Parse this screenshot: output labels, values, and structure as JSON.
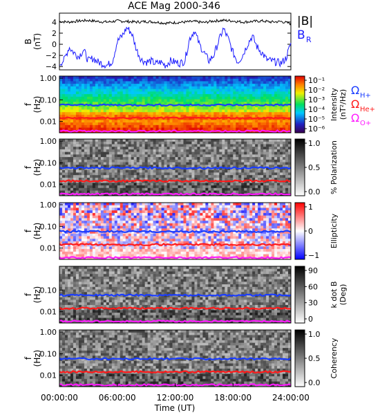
{
  "title": "ACE Mag 2000-346",
  "colors": {
    "btotal": "#000000",
    "br": "#1a1aff",
    "h_plus": "#1a3cff",
    "he_plus": "#ff1a1a",
    "o_plus": "#ff1aff"
  },
  "legends": {
    "btotal_label": "|B|",
    "br_label": "B",
    "br_sub": "R",
    "omega_symbol": "Ω",
    "h_sub": "H+",
    "he_sub": "He+",
    "o_sub": "O+"
  },
  "chart_data": [
    {
      "type": "line",
      "panel": "magnetic field",
      "ylabel": "B",
      "ylabel_unit": "(nT)",
      "ylim": [
        -4.6,
        5.6
      ],
      "yticks": [
        -4,
        -2,
        0,
        2,
        4
      ],
      "tick_labels": [
        "−4",
        "−2",
        "0",
        "2",
        "4"
      ],
      "series": [
        {
          "name": "|B|",
          "x_hours": [
            0,
            1,
            2,
            3,
            4,
            5,
            6,
            7,
            8,
            9,
            10,
            11,
            12,
            13,
            14,
            15,
            16,
            17,
            18,
            19,
            20,
            21,
            22,
            23,
            24
          ],
          "values": [
            4.1,
            4.0,
            4.2,
            4.3,
            4.1,
            4.0,
            4.2,
            4.1,
            4.0,
            4.1,
            4.0,
            3.8,
            3.9,
            4.0,
            4.1,
            3.9,
            4.2,
            4.3,
            4.2,
            4.0,
            4.1,
            4.2,
            4.0,
            4.1,
            3.7
          ]
        },
        {
          "name": "BR",
          "x_hours": [
            0,
            0.5,
            1,
            1.5,
            2,
            2.5,
            3,
            3.5,
            4,
            4.5,
            5,
            5.5,
            6,
            6.5,
            7,
            7.5,
            8,
            8.5,
            9,
            9.5,
            10,
            10.5,
            11,
            11.5,
            12,
            12.5,
            13,
            13.5,
            14,
            14.5,
            15,
            15.5,
            16,
            16.5,
            17,
            17.5,
            18,
            18.5,
            19,
            19.5,
            20,
            20.5,
            21,
            21.5,
            22,
            22.5,
            23,
            23.5,
            24
          ],
          "values": [
            -3.5,
            -2.8,
            -0.5,
            -1.5,
            -2.2,
            -1.0,
            -3.0,
            -2.5,
            -3.2,
            -3.5,
            -3.8,
            -3.0,
            0.5,
            1.5,
            3.0,
            2.0,
            -1.0,
            -2.8,
            -3.2,
            -3.0,
            -3.5,
            -3.2,
            -3.8,
            -3.0,
            -3.2,
            -3.4,
            -3.0,
            1.0,
            2.5,
            0.0,
            -1.5,
            -3.0,
            -2.0,
            0.5,
            2.8,
            1.0,
            -1.5,
            -3.2,
            -2.0,
            0.0,
            1.5,
            -0.5,
            -1.5,
            -2.8,
            -3.0,
            -3.2,
            -3.4,
            -2.5,
            0.2
          ]
        }
      ]
    },
    {
      "type": "heatmap",
      "panel": "power spectral density",
      "ylabel": "f",
      "ylabel_unit": "(Hz)",
      "yticks": [
        1.0,
        0.1,
        0.01
      ],
      "tick_labels": [
        "1.00",
        "0.10",
        "0.01"
      ],
      "colorbar_label": "Intensity",
      "colorbar_unit": "(nT²/Hz)",
      "colorbar_ticks": [
        "10⁻¹",
        "10⁻²",
        "10⁻³",
        "10⁻⁴",
        "10⁻⁵",
        "10⁻⁶"
      ],
      "colormap": "rainbow"
    },
    {
      "type": "heatmap",
      "panel": "percent polarization",
      "ylabel": "f",
      "ylabel_unit": "(Hz)",
      "yticks": [
        1.0,
        0.1,
        0.01
      ],
      "tick_labels": [
        "1.00",
        "0.10",
        "0.01"
      ],
      "colorbar_label": "% Polarization",
      "colorbar_ticks": [
        "1.0",
        "0.5",
        "0.0"
      ],
      "colormap": "grayscale"
    },
    {
      "type": "heatmap",
      "panel": "ellipticity",
      "ylabel": "f",
      "ylabel_unit": "(Hz)",
      "yticks": [
        1.0,
        0.1,
        0.01
      ],
      "tick_labels": [
        "1.00",
        "0.10",
        "0.01"
      ],
      "colorbar_label": "Ellipticity",
      "colorbar_ticks": [
        "1",
        "0",
        "−1"
      ],
      "colormap": "blue-white-red"
    },
    {
      "type": "heatmap",
      "panel": "wave normal angle",
      "ylabel": "f",
      "ylabel_unit": "(Hz)",
      "yticks": [
        0.1,
        0.01
      ],
      "tick_labels": [
        "0.10",
        "0.01"
      ],
      "colorbar_label": "k dot B",
      "colorbar_unit": "(Deg)",
      "colorbar_ticks": [
        "90",
        "60",
        "30",
        "0"
      ],
      "colormap": "grayscale"
    },
    {
      "type": "heatmap",
      "panel": "coherency",
      "ylabel": "f",
      "ylabel_unit": "(Hz)",
      "yticks": [
        1.0,
        0.1,
        0.01
      ],
      "tick_labels": [
        "1.00",
        "0.10",
        "0.01"
      ],
      "colorbar_label": "Coherency",
      "colorbar_ticks": [
        "1.0",
        "0.5",
        "0.0"
      ],
      "colormap": "grayscale"
    }
  ],
  "gyrofrequency_lines_hz": {
    "h_plus": 0.058,
    "he_plus": 0.0145,
    "o_plus": 0.0036
  },
  "x_axis": {
    "label": "Time (UT)",
    "tick_labels": [
      "00:00:00",
      "06:00:00",
      "12:00:00",
      "18:00:00",
      "24:00:00"
    ]
  }
}
